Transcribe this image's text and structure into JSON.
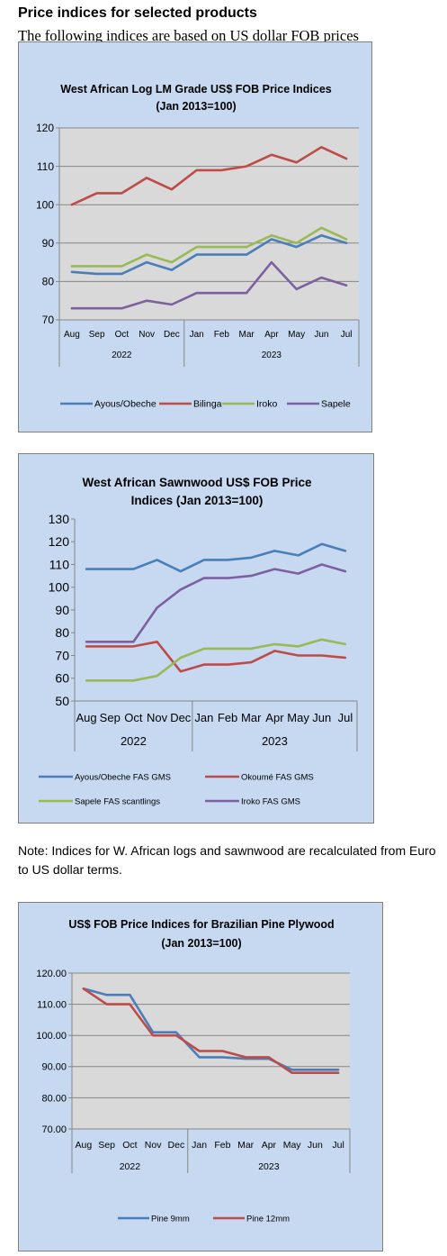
{
  "page": {
    "heading": "Price indices for selected products",
    "subheading": "The following indices are based on US dollar FOB prices",
    "note": "Note: Indices for W. African logs and sawnwood are recalculated from Euro to US dollar terms."
  },
  "colors": {
    "panel_background": "#c6d9f1",
    "plot_background": "#d9d9d9",
    "blue": "#4a7ebb",
    "red": "#be4b48",
    "green": "#98b954",
    "purple": "#7d60a0"
  },
  "chart_data": [
    {
      "type": "line",
      "title": [
        "West African Log LM Grade US$ FOB Price Indices",
        "(Jan 2013=100)"
      ],
      "categories": [
        "Aug",
        "Sep",
        "Oct",
        "Nov",
        "Dec",
        "Jan",
        "Feb",
        "Mar",
        "Apr",
        "May",
        "Jun",
        "Jul"
      ],
      "year_groups": [
        {
          "label": "2022",
          "count": 5
        },
        {
          "label": "2023",
          "count": 7
        }
      ],
      "ylim": [
        70,
        120
      ],
      "yticks": [
        "70",
        "80",
        "90",
        "100",
        "110",
        "120"
      ],
      "grid": true,
      "legend": "bottom",
      "series": [
        {
          "name": "Ayous/Obeche",
          "color": "#4a7ebb",
          "values": [
            82.5,
            82,
            82,
            85,
            83,
            87,
            87,
            87,
            91,
            89,
            92,
            90
          ]
        },
        {
          "name": "Bilinga",
          "color": "#be4b48",
          "values": [
            100,
            103,
            103,
            107,
            104,
            109,
            109,
            110,
            113,
            111,
            115,
            112
          ]
        },
        {
          "name": "Iroko",
          "color": "#98b954",
          "values": [
            84,
            84,
            84,
            87,
            85,
            89,
            89,
            89,
            92,
            90,
            94,
            91
          ]
        },
        {
          "name": "Sapele",
          "color": "#7d60a0",
          "values": [
            73,
            73,
            73,
            75,
            74,
            77,
            77,
            77,
            85,
            78,
            81,
            79
          ]
        }
      ]
    },
    {
      "type": "line",
      "title": [
        "West African Sawnwood US$ FOB Price",
        "Indices (Jan 2013=100)"
      ],
      "categories": [
        "Aug",
        "Sep",
        "Oct",
        "Nov",
        "Dec",
        "Jan",
        "Feb",
        "Mar",
        "Apr",
        "May",
        "Jun",
        "Jul"
      ],
      "year_groups": [
        {
          "label": "2022",
          "count": 5
        },
        {
          "label": "2023",
          "count": 7
        }
      ],
      "ylim": [
        50,
        130
      ],
      "yticks": [
        "50",
        "60",
        "70",
        "80",
        "90",
        "100",
        "110",
        "120",
        "130"
      ],
      "grid": false,
      "legend": "bottom",
      "series": [
        {
          "name": "Ayous/Obeche  FAS GMS",
          "color": "#4a7ebb",
          "values": [
            108,
            108,
            108,
            112,
            107,
            112,
            112,
            113,
            116,
            114,
            119,
            116
          ]
        },
        {
          "name": "Okoumé  FAS GMS",
          "color": "#be4b48",
          "values": [
            74,
            74,
            74,
            76,
            63,
            66,
            66,
            67,
            72,
            70,
            70,
            69
          ]
        },
        {
          "name": "Sapele FAS scantlings",
          "color": "#98b954",
          "values": [
            59,
            59,
            59,
            61,
            69,
            73,
            73,
            73,
            75,
            74,
            77,
            75
          ]
        },
        {
          "name": "Iroko FAS GMS",
          "color": "#7d60a0",
          "values": [
            76,
            76,
            76,
            91,
            99,
            104,
            104,
            105,
            108,
            106,
            110,
            107
          ]
        }
      ]
    },
    {
      "type": "line",
      "title": [
        "US$ FOB Price Indices for Brazilian  Pine Plywood",
        "(Jan 2013=100)"
      ],
      "categories": [
        "Aug",
        "Sep",
        "Oct",
        "Nov",
        "Dec",
        "Jan",
        "Feb",
        "Mar",
        "Apr",
        "May",
        "Jun",
        "Jul"
      ],
      "year_groups": [
        {
          "label": "2022",
          "count": 5
        },
        {
          "label": "2023",
          "count": 7
        }
      ],
      "ylim": [
        70,
        120
      ],
      "yticks": [
        "70.00",
        "80.00",
        "90.00",
        "100.00",
        "110.00",
        "120.00"
      ],
      "grid": true,
      "legend": "bottom",
      "series": [
        {
          "name": "Pine 9mm",
          "color": "#4a7ebb",
          "values": [
            115,
            113,
            113,
            101,
            101,
            93,
            93,
            92.5,
            92.5,
            89,
            89,
            89
          ]
        },
        {
          "name": "Pine 12mm",
          "color": "#be4b48",
          "values": [
            115,
            110,
            110,
            100,
            100,
            95,
            95,
            93,
            93,
            88,
            88,
            88
          ]
        }
      ]
    }
  ]
}
